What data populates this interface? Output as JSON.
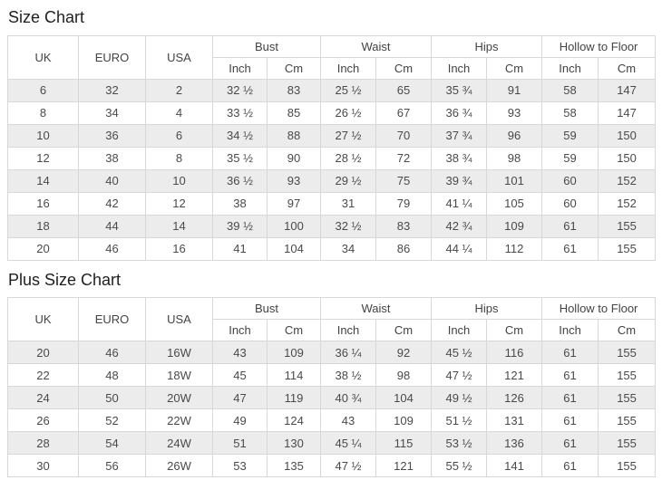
{
  "page": {
    "colors": {
      "background": "#ffffff",
      "row_stripe": "#ececec",
      "table_border": "#d8d8d8",
      "header_text": "#434343",
      "cell_text": "#4a4a4a",
      "title_text": "#1f1f1f"
    }
  },
  "tables": [
    {
      "title": "Size Chart",
      "headers": [
        "UK",
        "EURO",
        "USA"
      ],
      "groups": [
        {
          "label": "Bust",
          "sub": [
            "Inch",
            "Cm"
          ]
        },
        {
          "label": "Waist",
          "sub": [
            "Inch",
            "Cm"
          ]
        },
        {
          "label": "Hips",
          "sub": [
            "Inch",
            "Cm"
          ]
        },
        {
          "label": "Hollow to Floor",
          "sub": [
            "Inch",
            "Cm"
          ]
        }
      ],
      "rows": [
        [
          "6",
          "32",
          "2",
          "32 ½",
          "83",
          "25 ½",
          "65",
          "35 ¾",
          "91",
          "58",
          "147"
        ],
        [
          "8",
          "34",
          "4",
          "33 ½",
          "85",
          "26 ½",
          "67",
          "36 ¾",
          "93",
          "58",
          "147"
        ],
        [
          "10",
          "36",
          "6",
          "34 ½",
          "88",
          "27 ½",
          "70",
          "37 ¾",
          "96",
          "59",
          "150"
        ],
        [
          "12",
          "38",
          "8",
          "35 ½",
          "90",
          "28 ½",
          "72",
          "38 ¾",
          "98",
          "59",
          "150"
        ],
        [
          "14",
          "40",
          "10",
          "36 ½",
          "93",
          "29 ½",
          "75",
          "39 ¾",
          "101",
          "60",
          "152"
        ],
        [
          "16",
          "42",
          "12",
          "38",
          "97",
          "31",
          "79",
          "41 ¼",
          "105",
          "60",
          "152"
        ],
        [
          "18",
          "44",
          "14",
          "39 ½",
          "100",
          "32 ½",
          "83",
          "42 ¾",
          "109",
          "61",
          "155"
        ],
        [
          "20",
          "46",
          "16",
          "41",
          "104",
          "34",
          "86",
          "44 ¼",
          "112",
          "61",
          "155"
        ]
      ]
    },
    {
      "title": "Plus Size Chart",
      "headers": [
        "UK",
        "EURO",
        "USA"
      ],
      "groups": [
        {
          "label": "Bust",
          "sub": [
            "Inch",
            "Cm"
          ]
        },
        {
          "label": "Waist",
          "sub": [
            "Inch",
            "Cm"
          ]
        },
        {
          "label": "Hips",
          "sub": [
            "Inch",
            "Cm"
          ]
        },
        {
          "label": "Hollow to Floor",
          "sub": [
            "Inch",
            "Cm"
          ]
        }
      ],
      "rows": [
        [
          "20",
          "46",
          "16W",
          "43",
          "109",
          "36 ¼",
          "92",
          "45 ½",
          "116",
          "61",
          "155"
        ],
        [
          "22",
          "48",
          "18W",
          "45",
          "114",
          "38 ½",
          "98",
          "47 ½",
          "121",
          "61",
          "155"
        ],
        [
          "24",
          "50",
          "20W",
          "47",
          "119",
          "40 ¾",
          "104",
          "49 ½",
          "126",
          "61",
          "155"
        ],
        [
          "26",
          "52",
          "22W",
          "49",
          "124",
          "43",
          "109",
          "51 ½",
          "131",
          "61",
          "155"
        ],
        [
          "28",
          "54",
          "24W",
          "51",
          "130",
          "45 ¼",
          "115",
          "53 ½",
          "136",
          "61",
          "155"
        ],
        [
          "30",
          "56",
          "26W",
          "53",
          "135",
          "47 ½",
          "121",
          "55 ½",
          "141",
          "61",
          "155"
        ]
      ]
    }
  ]
}
